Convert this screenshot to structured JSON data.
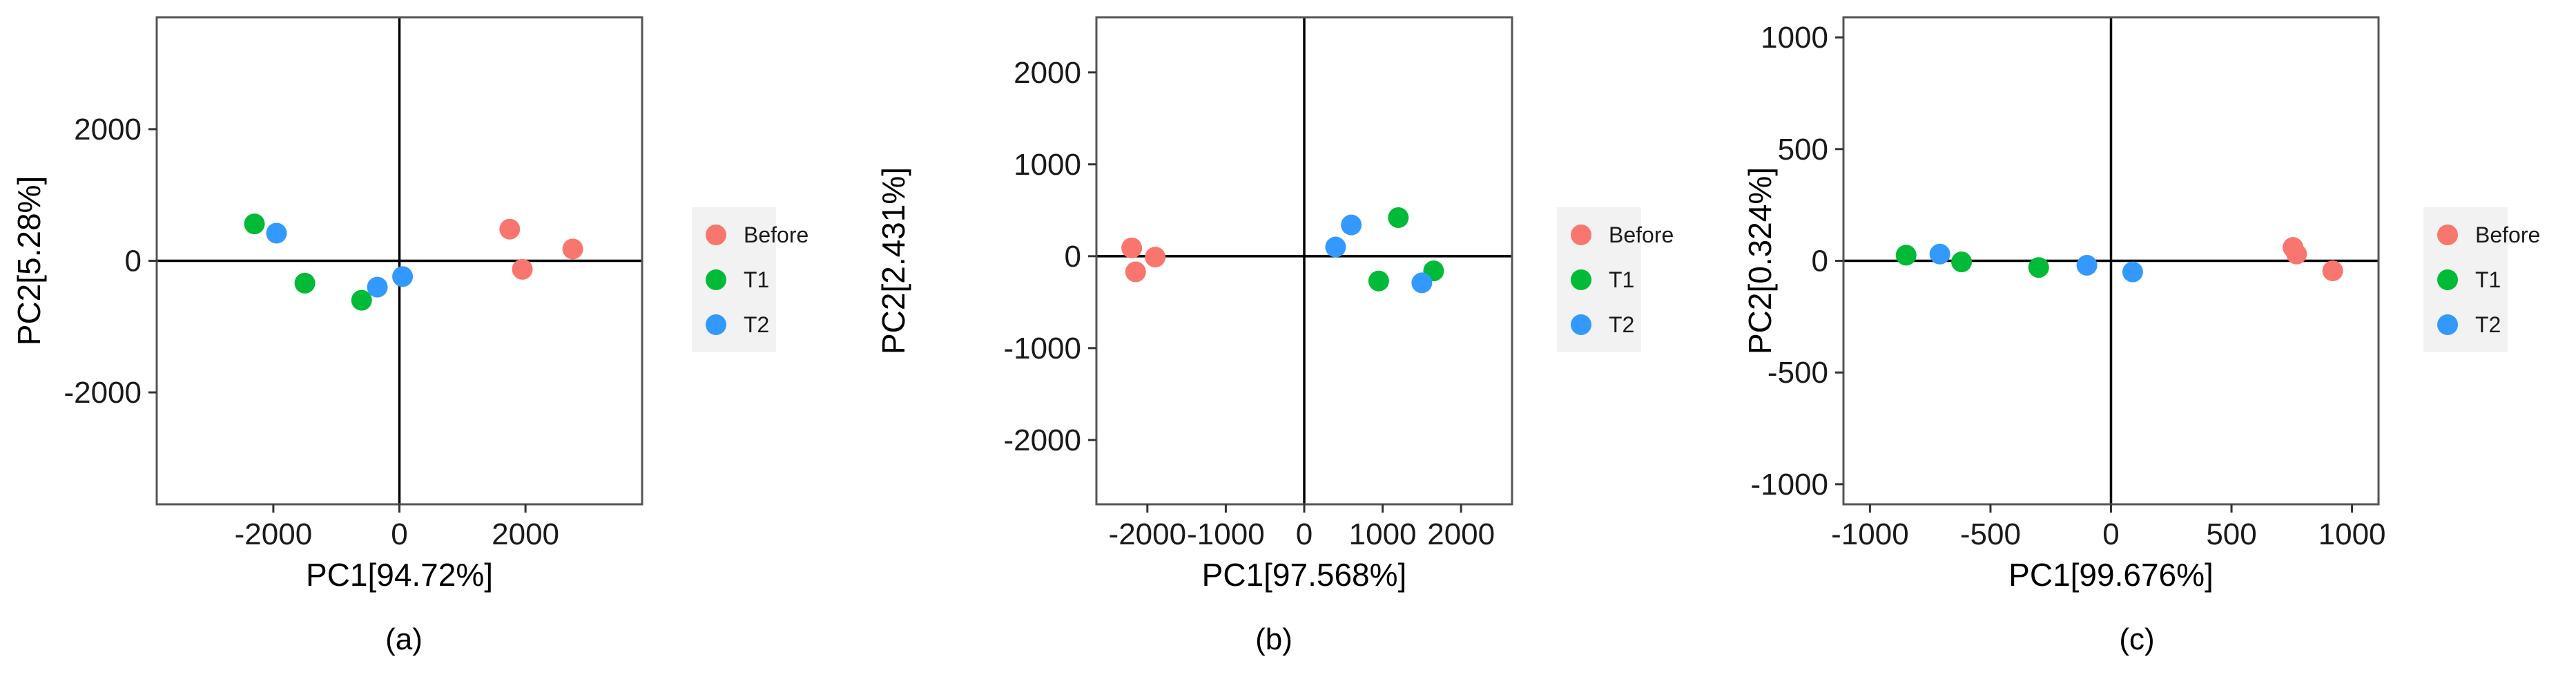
{
  "colors": {
    "Before": "#F8766D",
    "T1": "#00BA38",
    "T2": "#3399FF"
  },
  "chart_data": [
    {
      "type": "scatter",
      "caption": "(a)",
      "xlabel": "PC1[94.72%]",
      "ylabel": "PC2[5.28%]",
      "xlim": [
        -3850,
        3850
      ],
      "ylim": [
        -3700,
        3700
      ],
      "xticks": [
        -2000,
        0,
        2000
      ],
      "yticks": [
        -2000,
        0,
        2000
      ],
      "xtick_labels": [
        "-2000",
        "0",
        "2000"
      ],
      "ytick_labels": [
        "-2000",
        "0",
        "2000"
      ],
      "legend_position": "right",
      "series": [
        {
          "name": "Before",
          "points": [
            [
              1750,
              480
            ],
            [
              1950,
              -130
            ],
            [
              2750,
              180
            ]
          ]
        },
        {
          "name": "T1",
          "points": [
            [
              -2300,
              560
            ],
            [
              -1500,
              -340
            ],
            [
              -600,
              -600
            ]
          ]
        },
        {
          "name": "T2",
          "points": [
            [
              -1950,
              420
            ],
            [
              -350,
              -400
            ],
            [
              50,
              -240
            ]
          ]
        }
      ]
    },
    {
      "type": "scatter",
      "caption": "(b)",
      "xlabel": "PC1[97.568%]",
      "ylabel": "PC2[2.431%]",
      "xlim": [
        -2650,
        2650
      ],
      "ylim": [
        -2700,
        2600
      ],
      "xticks": [
        -2000,
        -1000,
        0,
        1000,
        2000
      ],
      "yticks": [
        -2000,
        -1000,
        0,
        1000,
        2000
      ],
      "xtick_labels": [
        "-2000",
        "-1000",
        "0",
        "1000",
        "2000"
      ],
      "ytick_labels": [
        "-2000",
        "-1000",
        "0",
        "1000",
        "2000"
      ],
      "legend_position": "right",
      "series": [
        {
          "name": "Before",
          "points": [
            [
              -2200,
              90
            ],
            [
              -2150,
              -170
            ],
            [
              -1900,
              -10
            ]
          ]
        },
        {
          "name": "T1",
          "points": [
            [
              950,
              -270
            ],
            [
              1200,
              420
            ],
            [
              1650,
              -160
            ]
          ]
        },
        {
          "name": "T2",
          "points": [
            [
              400,
              100
            ],
            [
              600,
              340
            ],
            [
              1500,
              -290
            ]
          ]
        }
      ]
    },
    {
      "type": "scatter",
      "caption": "(c)",
      "xlabel": "PC1[99.676%]",
      "ylabel": "PC2[0.324%]",
      "xlim": [
        -1110,
        1110
      ],
      "ylim": [
        -1090,
        1090
      ],
      "xticks": [
        -1000,
        -500,
        0,
        500,
        1000
      ],
      "yticks": [
        -1000,
        -500,
        0,
        500,
        1000
      ],
      "xtick_labels": [
        "-1000",
        "-500",
        "0",
        "500",
        "1000"
      ],
      "ytick_labels": [
        "-1000",
        "-500",
        "0",
        "500",
        "1000"
      ],
      "legend_position": "right",
      "series": [
        {
          "name": "Before",
          "points": [
            [
              755,
              60
            ],
            [
              770,
              30
            ],
            [
              920,
              -45
            ]
          ]
        },
        {
          "name": "T1",
          "points": [
            [
              -850,
              25
            ],
            [
              -620,
              -5
            ],
            [
              -300,
              -30
            ]
          ]
        },
        {
          "name": "T2",
          "points": [
            [
              -710,
              30
            ],
            [
              -100,
              -20
            ],
            [
              90,
              -50
            ]
          ]
        }
      ]
    }
  ]
}
